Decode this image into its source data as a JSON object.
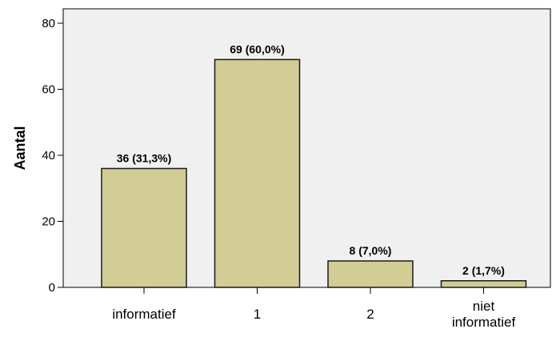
{
  "chart_data": {
    "type": "bar",
    "categories": [
      "informatief",
      "1",
      "2",
      "niet informatief"
    ],
    "values": [
      36,
      69,
      8,
      2
    ],
    "data_labels": [
      "36 (31,3%)",
      "69 (60,0%)",
      "8 (7,0%)",
      "2 (1,7%)"
    ],
    "ylabel": "Aantal",
    "xlabel": "",
    "ylim": [
      0,
      80
    ],
    "yticks": [
      0,
      20,
      40,
      60,
      80
    ],
    "grid": false,
    "colors": {
      "bar_fill": "#d2cc95",
      "bar_stroke": "#1a1a1a",
      "plot_background": "#f0f0f0",
      "plot_border": "#000000"
    }
  }
}
